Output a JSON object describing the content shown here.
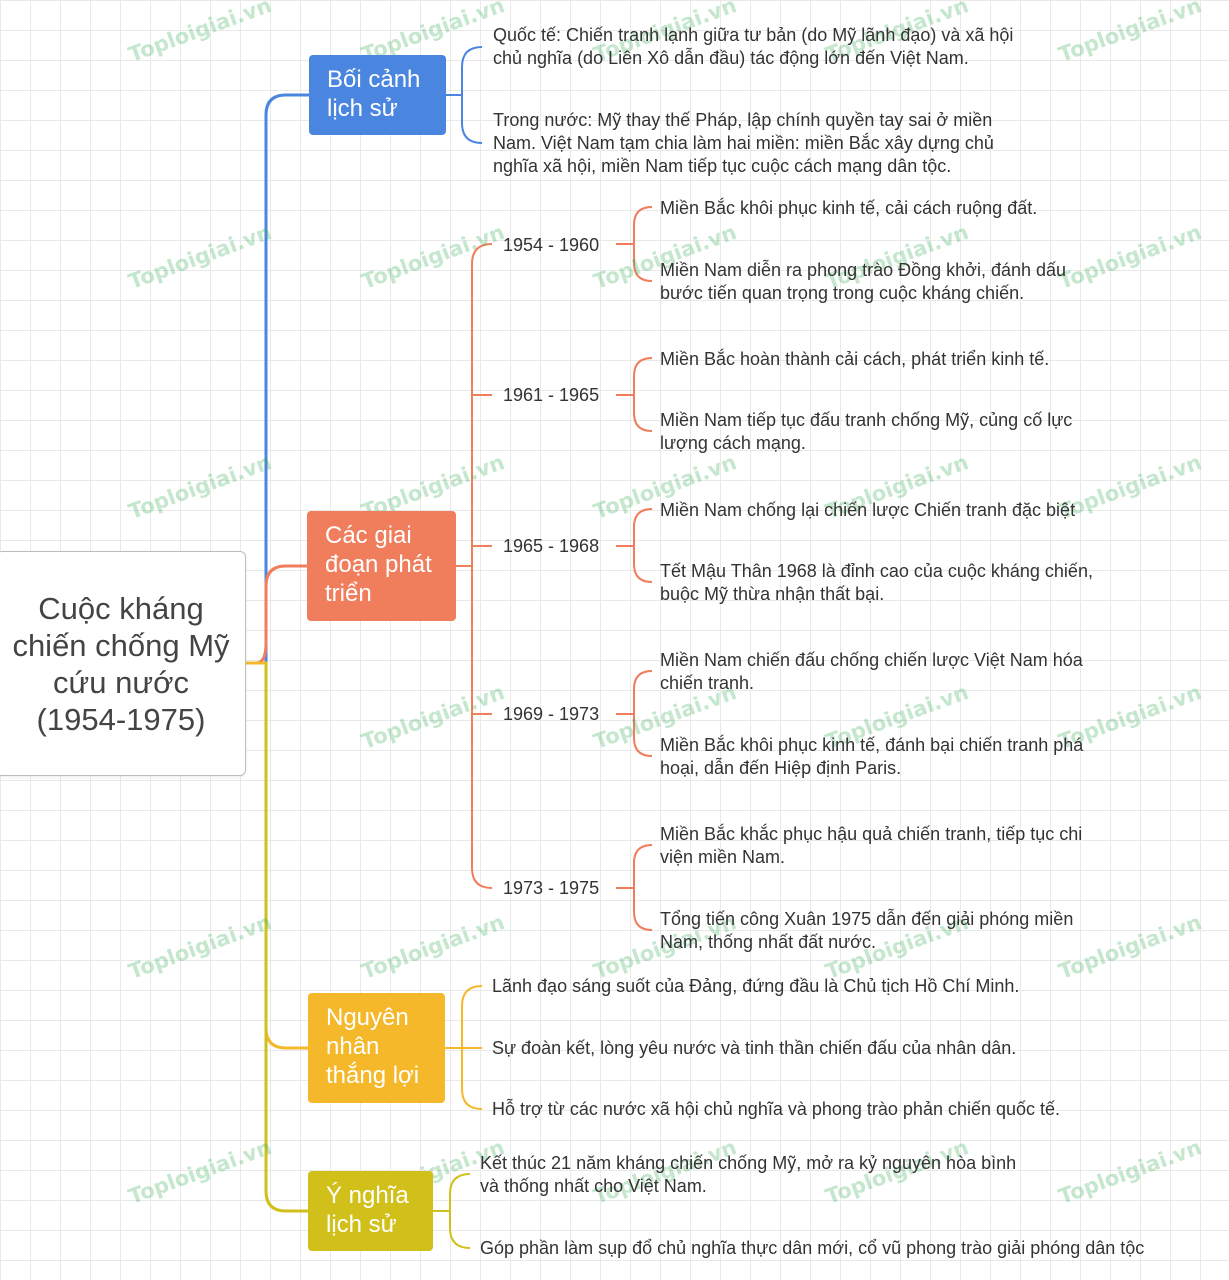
{
  "root": {
    "title": "Cuộc kháng chiến chống Mỹ cứu nước (1954-1975)"
  },
  "branches": [
    {
      "label": "Bối cảnh lịch sử",
      "color": "#4a86e0",
      "leaves": [
        "Quốc tế: Chiến tranh lạnh giữa tư bản (do Mỹ lãnh đạo) và xã hội\nchủ nghĩa (do Liên Xô dẫn đầu) tác động lớn đến Việt Nam.",
        "Trong nước: Mỹ thay thế Pháp, lập chính quyền tay sai ở miền\nNam. Việt Nam tạm chia làm hai miền: miền Bắc xây dựng chủ\nnghĩa xã hội, miền Nam tiếp tục cuộc cách mạng dân tộc."
      ]
    },
    {
      "label": "Các giai đoạn phát triển",
      "color": "#f07d5c",
      "periods": [
        {
          "label": "1954 - 1960",
          "leaves": [
            "Miền Bắc khôi phục kinh tế, cải cách ruộng đất.",
            "Miền Nam diễn ra phong trào Đồng khởi, đánh dấu\nbước tiến quan trọng trong cuộc kháng chiến."
          ]
        },
        {
          "label": "1961 - 1965",
          "leaves": [
            "Miền Bắc hoàn thành cải cách, phát triển kinh tế.",
            "Miền Nam tiếp tục đấu tranh chống Mỹ, củng cố lực\nlượng cách mạng."
          ]
        },
        {
          "label": "1965 - 1968",
          "leaves": [
            "Miền Nam chống lại chiến lược Chiến tranh đặc biệt",
            "Tết Mậu Thân 1968 là đỉnh cao của cuộc kháng chiến,\nbuộc Mỹ thừa nhận thất bại."
          ]
        },
        {
          "label": "1969 - 1973",
          "leaves": [
            "Miền Nam chiến đấu chống chiến lược Việt Nam hóa\nchiến tranh.",
            "Miền Bắc khôi phục kinh tế, đánh bại chiến tranh phá\nhoại, dẫn đến Hiệp định Paris."
          ]
        },
        {
          "label": "1973 - 1975",
          "leaves": [
            "Miền Bắc khắc phục hậu quả chiến tranh, tiếp tục chi\nviện miền Nam.",
            "Tổng tiến công Xuân 1975 dẫn đến giải phóng miền\nNam, thống nhất đất nước."
          ]
        }
      ]
    },
    {
      "label": "Nguyên nhân thắng lợi",
      "color": "#f4b82a",
      "leaves": [
        "Lãnh đạo sáng suốt của Đảng, đứng đầu là Chủ tịch Hồ Chí Minh.",
        "Sự đoàn kết, lòng yêu nước và tinh thần chiến đấu của nhân dân.",
        "Hỗ trợ từ các nước xã hội chủ nghĩa và phong trào phản chiến quốc tế."
      ]
    },
    {
      "label": "Ý nghĩa lịch sử",
      "color": "#d1c019",
      "leaves": [
        "Kết thúc 21 năm kháng chiến chống Mỹ, mở ra kỷ nguyên hòa bình\nvà thống nhất cho Việt Nam.",
        "Góp phần làm sụp đổ chủ nghĩa thực dân mới, cổ vũ phong trào giải phóng dân tộc"
      ]
    }
  ],
  "watermark": "Toploigiai.vn"
}
